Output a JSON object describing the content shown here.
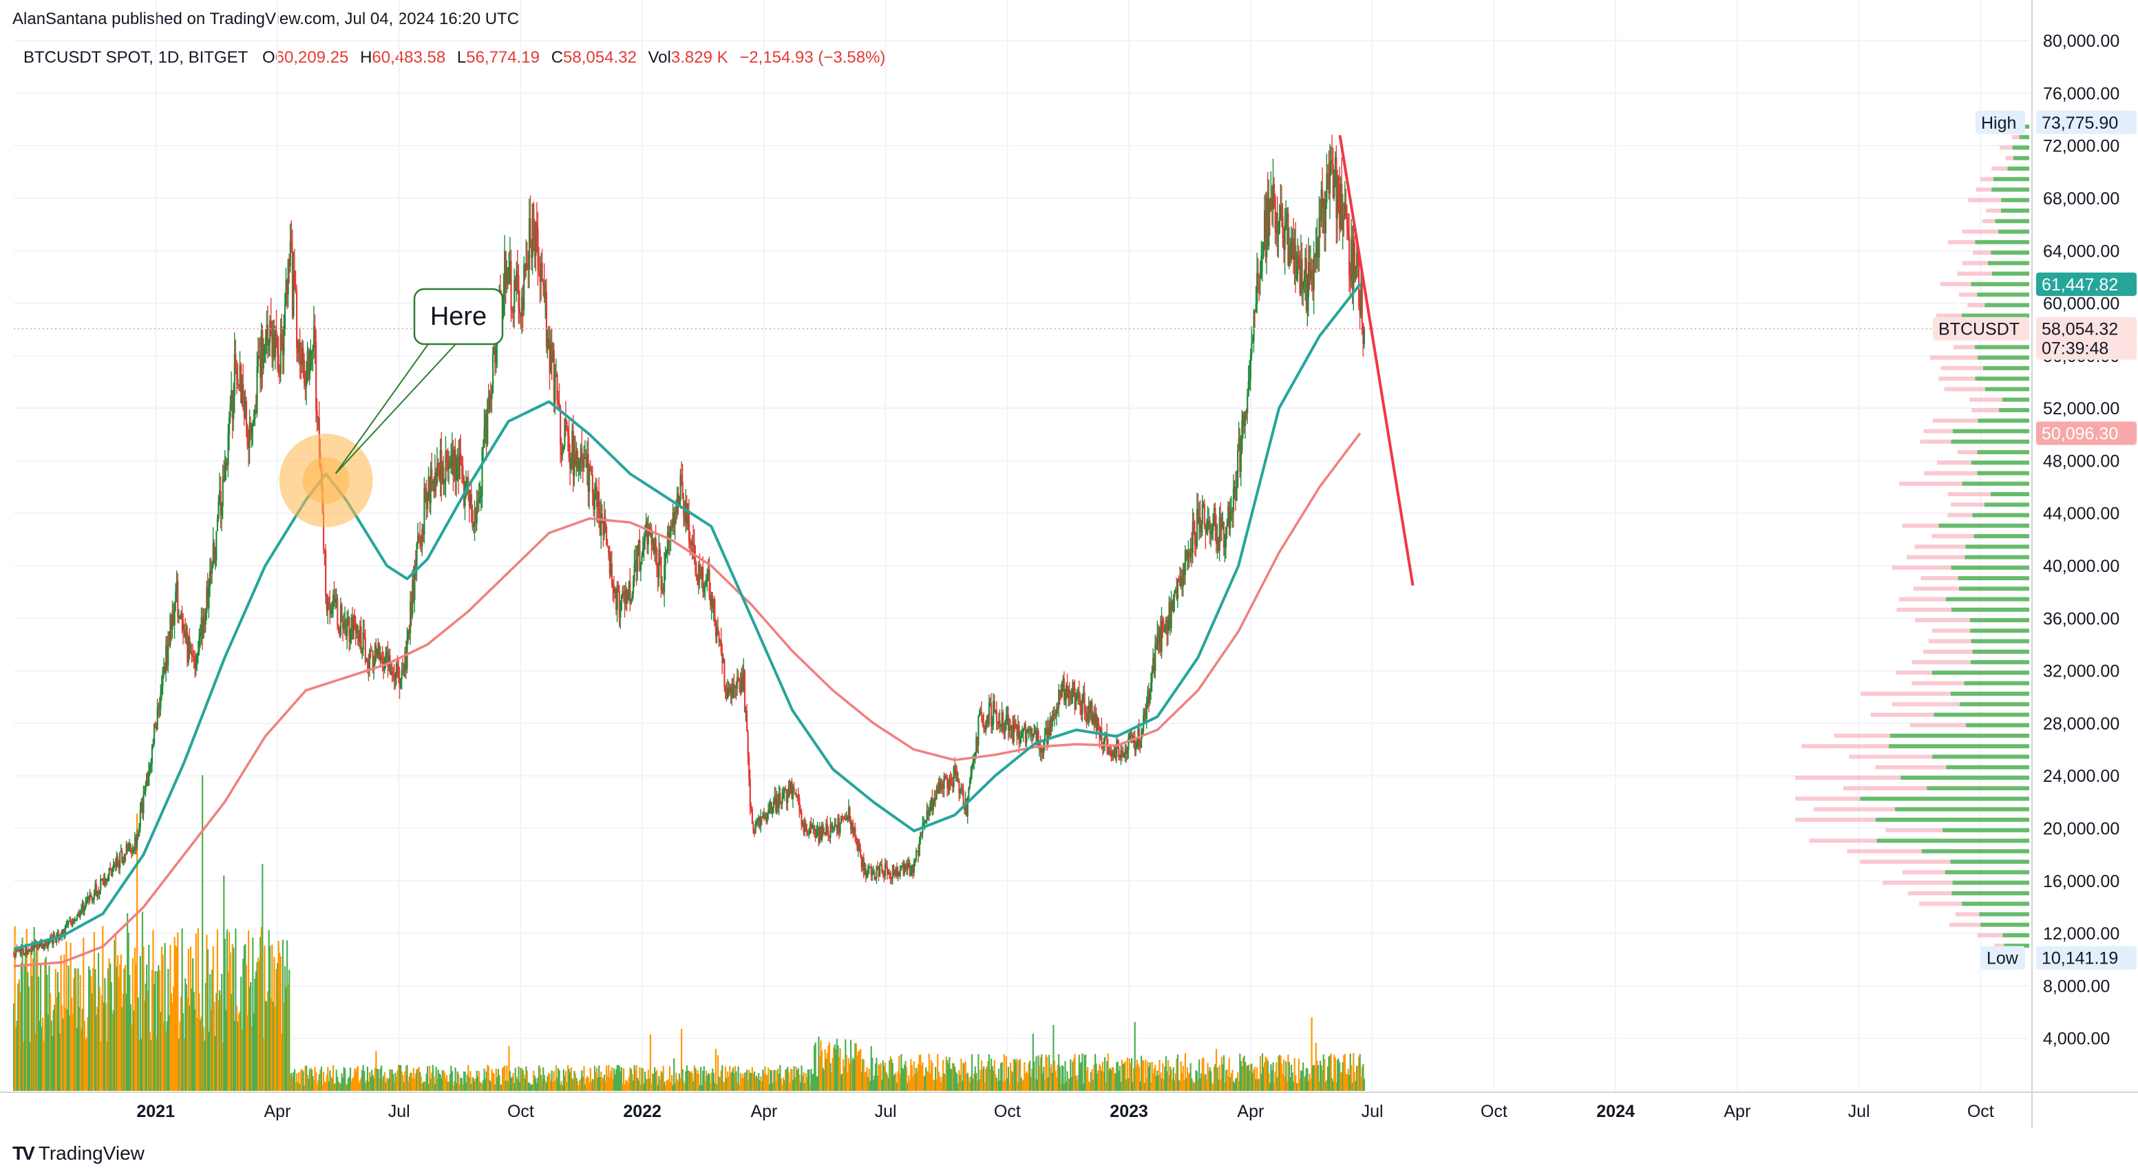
{
  "header": {
    "credit": "AlanSantana published on TradingView.com, Jul 04, 2024 16:20 UTC"
  },
  "legend": {
    "symbol": "BTCUSDT SPOT, 1D, BITGET",
    "open_label": "O",
    "open": "60,209.25",
    "high_label": "H",
    "high": "60,483.58",
    "low_label": "L",
    "low": "56,774.19",
    "close_label": "C",
    "close": "58,054.32",
    "vol_label": "Vol",
    "vol": "3.829 K",
    "change": "−2,154.93 (−3.58%)"
  },
  "brand": {
    "name": "TradingView",
    "logo": "TV"
  },
  "annotation": {
    "text": "Here"
  },
  "price_labels": {
    "high_tag": "High",
    "high_value": "73,775.90",
    "low_tag": "Low",
    "low_value": "10,141.19",
    "ma_fast_value": "61,447.82",
    "symbol_tag": "BTCUSDT",
    "last_value": "58,054.32",
    "countdown": "07:39:48",
    "ma_slow_value": "50,096.30"
  },
  "colors": {
    "up": "#26a69a",
    "down": "#ef5350",
    "candle_up": "#1e8b3a",
    "candle_down": "#e53935",
    "ma_fast": "#26a69a",
    "ma_slow": "#f08080",
    "vol_green": "#4caf50",
    "vol_orange": "#ff9800",
    "trendline": "#f23645",
    "highlight": "#ffb74d",
    "callout_border": "#2e7d32"
  },
  "chart_data": {
    "type": "candlestick",
    "title": "BTCUSDT SPOT, 1D, BITGET",
    "y_ticks": [
      "80,000.00",
      "76,000.00",
      "72,000.00",
      "68,000.00",
      "64,000.00",
      "60,000.00",
      "56,000.00",
      "52,000.00",
      "48,000.00",
      "44,000.00",
      "40,000.00",
      "36,000.00",
      "32,000.00",
      "28,000.00",
      "24,000.00",
      "20,000.00",
      "16,000.00",
      "12,000.00",
      "8,000.00",
      "4,000.00"
    ],
    "y_tick_values": [
      80000,
      76000,
      72000,
      68000,
      64000,
      60000,
      56000,
      52000,
      48000,
      44000,
      40000,
      36000,
      32000,
      28000,
      24000,
      20000,
      16000,
      12000,
      8000,
      4000
    ],
    "ylim": [
      0,
      81000
    ],
    "x_ticks": [
      {
        "label": "2021",
        "month": 2.3,
        "bold": true
      },
      {
        "label": "Apr",
        "month": 5.3,
        "bold": false
      },
      {
        "label": "Jul",
        "month": 8.3,
        "bold": false
      },
      {
        "label": "Oct",
        "month": 11.3,
        "bold": false
      },
      {
        "label": "2022",
        "month": 14.3,
        "bold": true
      },
      {
        "label": "Apr",
        "month": 17.3,
        "bold": false
      },
      {
        "label": "Jul",
        "month": 20.3,
        "bold": false
      },
      {
        "label": "Oct",
        "month": 23.3,
        "bold": false
      },
      {
        "label": "2023",
        "month": 26.3,
        "bold": true
      },
      {
        "label": "Apr",
        "month": 29.3,
        "bold": false
      },
      {
        "label": "Jul",
        "month": 32.3,
        "bold": false
      },
      {
        "label": "Oct",
        "month": 35.3,
        "bold": false
      },
      {
        "label": "2024",
        "month": 38.3,
        "bold": true
      },
      {
        "label": "Apr",
        "month": 41.3,
        "bold": false
      },
      {
        "label": "Jul",
        "month": 44.3,
        "bold": false
      },
      {
        "label": "Oct",
        "month": 47.3,
        "bold": false
      }
    ],
    "xlim_months": [
      -1.2,
      48.5
    ],
    "price_path": [
      [
        -1.2,
        10500
      ],
      [
        -0.5,
        11000
      ],
      [
        0,
        12000
      ],
      [
        0.5,
        14000
      ],
      [
        1,
        16000
      ],
      [
        1.5,
        18000
      ],
      [
        1.8,
        19000
      ],
      [
        2.1,
        24000
      ],
      [
        2.5,
        32000
      ],
      [
        2.8,
        38000
      ],
      [
        3.0,
        34000
      ],
      [
        3.3,
        33000
      ],
      [
        3.6,
        38000
      ],
      [
        4.0,
        47000
      ],
      [
        4.3,
        56000
      ],
      [
        4.6,
        50000
      ],
      [
        5.0,
        58000
      ],
      [
        5.4,
        56000
      ],
      [
        5.6,
        63000
      ],
      [
        5.9,
        55000
      ],
      [
        6.2,
        57000
      ],
      [
        6.5,
        38000
      ],
      [
        6.8,
        36000
      ],
      [
        7.2,
        35000
      ],
      [
        7.6,
        33000
      ],
      [
        8.0,
        33000
      ],
      [
        8.4,
        31000
      ],
      [
        8.7,
        40000
      ],
      [
        9.0,
        46000
      ],
      [
        9.3,
        48000
      ],
      [
        9.8,
        47000
      ],
      [
        10.2,
        43000
      ],
      [
        10.6,
        55000
      ],
      [
        10.9,
        62000
      ],
      [
        11.3,
        60000
      ],
      [
        11.6,
        66000
      ],
      [
        12.0,
        57000
      ],
      [
        12.3,
        50000
      ],
      [
        12.7,
        48000
      ],
      [
        13.0,
        47000
      ],
      [
        13.4,
        42000
      ],
      [
        13.7,
        37000
      ],
      [
        14.0,
        38000
      ],
      [
        14.4,
        43000
      ],
      [
        14.8,
        39000
      ],
      [
        15.2,
        46000
      ],
      [
        15.6,
        40000
      ],
      [
        16.0,
        38000
      ],
      [
        16.4,
        30000
      ],
      [
        16.8,
        31000
      ],
      [
        17.0,
        20000
      ],
      [
        17.3,
        21000
      ],
      [
        17.6,
        22000
      ],
      [
        18.0,
        23000
      ],
      [
        18.3,
        20000
      ],
      [
        18.6,
        19500
      ],
      [
        19.0,
        20000
      ],
      [
        19.4,
        21000
      ],
      [
        19.8,
        16500
      ],
      [
        20.2,
        16800
      ],
      [
        20.6,
        16600
      ],
      [
        21.0,
        17000
      ],
      [
        21.3,
        21000
      ],
      [
        21.6,
        23000
      ],
      [
        22.0,
        24000
      ],
      [
        22.3,
        21500
      ],
      [
        22.6,
        28000
      ],
      [
        23.0,
        29000
      ],
      [
        23.4,
        27500
      ],
      [
        23.8,
        27000
      ],
      [
        24.2,
        26500
      ],
      [
        24.6,
        30500
      ],
      [
        25.0,
        30000
      ],
      [
        25.4,
        28500
      ],
      [
        25.8,
        26200
      ],
      [
        26.2,
        26000
      ],
      [
        26.6,
        27000
      ],
      [
        27.0,
        34000
      ],
      [
        27.4,
        37000
      ],
      [
        27.8,
        42000
      ],
      [
        28.2,
        44000
      ],
      [
        28.6,
        42000
      ],
      [
        28.9,
        46000
      ],
      [
        29.2,
        52000
      ],
      [
        29.5,
        62000
      ],
      [
        29.8,
        68000
      ],
      [
        30.1,
        66000
      ],
      [
        30.4,
        63000
      ],
      [
        30.7,
        61000
      ],
      [
        31.0,
        66000
      ],
      [
        31.3,
        70000
      ],
      [
        31.6,
        66000
      ],
      [
        31.9,
        62000
      ],
      [
        32.1,
        58000
      ]
    ],
    "ma_fast": [
      [
        -1.2,
        10800
      ],
      [
        0,
        11800
      ],
      [
        1,
        13500
      ],
      [
        2,
        18000
      ],
      [
        3,
        25000
      ],
      [
        4,
        33000
      ],
      [
        5,
        40000
      ],
      [
        6,
        45000
      ],
      [
        6.5,
        47000
      ],
      [
        7,
        45000
      ],
      [
        8,
        40000
      ],
      [
        8.5,
        39000
      ],
      [
        9,
        40500
      ],
      [
        10,
        46000
      ],
      [
        11,
        51000
      ],
      [
        12,
        52500
      ],
      [
        13,
        50000
      ],
      [
        14,
        47000
      ],
      [
        15,
        45000
      ],
      [
        16,
        43000
      ],
      [
        17,
        36000
      ],
      [
        18,
        29000
      ],
      [
        19,
        24500
      ],
      [
        20,
        22000
      ],
      [
        21,
        19800
      ],
      [
        22,
        21000
      ],
      [
        23,
        24000
      ],
      [
        24,
        26500
      ],
      [
        25,
        27500
      ],
      [
        26,
        27000
      ],
      [
        27,
        28500
      ],
      [
        28,
        33000
      ],
      [
        29,
        40000
      ],
      [
        30,
        52000
      ],
      [
        31,
        57500
      ],
      [
        32,
        61450
      ]
    ],
    "ma_slow": [
      [
        -1.2,
        9500
      ],
      [
        0,
        9800
      ],
      [
        1,
        11000
      ],
      [
        2,
        14000
      ],
      [
        3,
        18000
      ],
      [
        4,
        22000
      ],
      [
        5,
        27000
      ],
      [
        6,
        30500
      ],
      [
        7,
        31500
      ],
      [
        8,
        32500
      ],
      [
        9,
        34000
      ],
      [
        10,
        36500
      ],
      [
        11,
        39500
      ],
      [
        12,
        42500
      ],
      [
        13,
        43600
      ],
      [
        14,
        43300
      ],
      [
        15,
        42000
      ],
      [
        16,
        40000
      ],
      [
        17,
        37000
      ],
      [
        18,
        33500
      ],
      [
        19,
        30500
      ],
      [
        20,
        28000
      ],
      [
        21,
        26000
      ],
      [
        22,
        25200
      ],
      [
        23,
        25600
      ],
      [
        24,
        26200
      ],
      [
        25,
        26400
      ],
      [
        26,
        26300
      ],
      [
        27,
        27500
      ],
      [
        28,
        30500
      ],
      [
        29,
        35000
      ],
      [
        30,
        41000
      ],
      [
        31,
        46000
      ],
      [
        32,
        50100
      ]
    ],
    "volume_profile_note": "horizontal volume-by-price histogram on right side",
    "trendline": [
      [
        31.5,
        72800
      ],
      [
        33.3,
        38500
      ]
    ],
    "high": 73775.9,
    "low": 10141.19,
    "last": 58054.32
  }
}
